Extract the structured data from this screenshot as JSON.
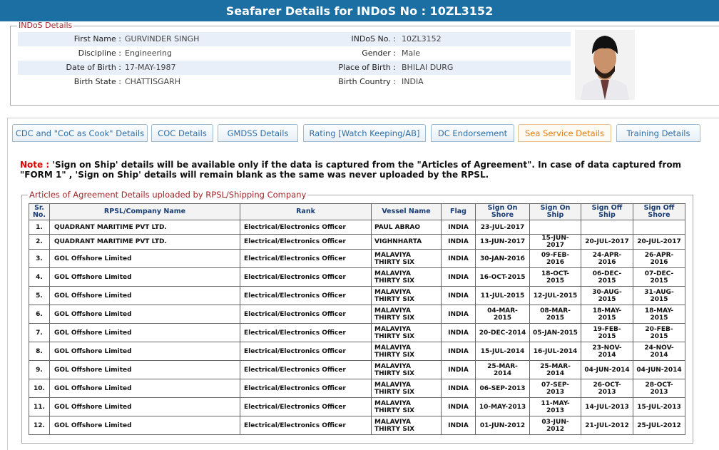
{
  "header": {
    "title": "Seafarer Details for INDoS No : 10ZL3152"
  },
  "indos_details": {
    "legend": "INDoS Details",
    "rows": [
      [
        {
          "label": "First Name :",
          "value": "GURVINDER SINGH"
        },
        {
          "label": "INDoS No. :",
          "value": "10ZL3152"
        }
      ],
      [
        {
          "label": "Discipline :",
          "value": "Engineering"
        },
        {
          "label": "Gender :",
          "value": "Male"
        }
      ],
      [
        {
          "label": "Date of Birth :",
          "value": "17-MAY-1987"
        },
        {
          "label": "Place of Birth :",
          "value": "BHILAI DURG"
        }
      ],
      [
        {
          "label": "Birth State :",
          "value": "CHATTISGARH"
        },
        {
          "label": "Birth Country :",
          "value": "INDIA"
        }
      ]
    ]
  },
  "tabs": {
    "items": [
      "CDC and \"CoC as Cook\" Details",
      "COC Details",
      "GMDSS Details",
      "Rating [Watch Keeping/AB]",
      "DC Endorsement",
      "Sea Service Details",
      "Training Details"
    ],
    "active": 5
  },
  "note": {
    "label": "Note :",
    "text": "'Sign on Ship' details will be available only if the data is captured from the \"Articles of Agreement\". In case of data captured from \"FORM 1\" , 'Sign on Ship' details will remain blank as the same was never uploaded by the RPSL."
  },
  "articles": {
    "legend": "Articles of Agreement Details uploaded by RPSL/Shipping Company",
    "columns": [
      "Sr. No.",
      "RPSL/Company Name",
      "Rank",
      "Vessel Name",
      "Flag",
      "Sign On Shore",
      "Sign On Ship",
      "Sign Off Ship",
      "Sign Off Shore"
    ],
    "rows": [
      [
        "1.",
        "QUADRANT MARITIME PVT LTD.",
        "Electrical/Electronics Officer",
        "PAUL ABRAO",
        "INDIA",
        "23-JUL-2017",
        null,
        null,
        null
      ],
      [
        "2.",
        "QUADRANT MARITIME PVT LTD.",
        "Electrical/Electronics Officer",
        "VIGHNHARTA",
        "INDIA",
        "13-JUN-2017",
        "15-JUN-2017",
        "20-JUL-2017",
        "20-JUL-2017"
      ],
      [
        "3.",
        "GOL Offshore Limited",
        "Electrical/Electronics Officer",
        "MALAVIYA THIRTY SIX",
        "INDIA",
        "30-JAN-2016",
        "09-FEB-2016",
        "24-APR-2016",
        "26-APR-2016"
      ],
      [
        "4.",
        "GOL Offshore Limited",
        "Electrical/Electronics Officer",
        "MALAVIYA THIRTY SIX",
        "INDIA",
        "16-OCT-2015",
        "18-OCT-2015",
        "06-DEC-2015",
        "07-DEC-2015"
      ],
      [
        "5.",
        "GOL Offshore Limited",
        "Electrical/Electronics Officer",
        "MALAVIYA THIRTY SIX",
        "INDIA",
        "11-JUL-2015",
        "12-JUL-2015",
        "30-AUG-2015",
        "31-AUG-2015"
      ],
      [
        "6.",
        "GOL Offshore Limited",
        "Electrical/Electronics Officer",
        "MALAVIYA THIRTY SIX",
        "INDIA",
        "04-MAR-2015",
        "08-MAR-2015",
        "18-MAY-2015",
        "18-MAY-2015"
      ],
      [
        "7.",
        "GOL Offshore Limited",
        "Electrical/Electronics Officer",
        "MALAVIYA THIRTY SIX",
        "INDIA",
        "20-DEC-2014",
        "05-JAN-2015",
        "19-FEB-2015",
        "20-FEB-2015"
      ],
      [
        "8.",
        "GOL Offshore Limited",
        "Electrical/Electronics Officer",
        "MALAVIYA THIRTY SIX",
        "INDIA",
        "15-JUL-2014",
        "16-JUL-2014",
        "23-NOV-2014",
        "24-NOV-2014"
      ],
      [
        "9.",
        "GOL Offshore Limited",
        "Electrical/Electronics Officer",
        "MALAVIYA THIRTY SIX",
        "INDIA",
        "25-MAR-2014",
        "25-MAR-2014",
        "04-JUN-2014",
        "04-JUN-2014"
      ],
      [
        "10.",
        "GOL Offshore Limited",
        "Electrical/Electronics Officer",
        "MALAVIYA THIRTY SIX",
        "INDIA",
        "06-SEP-2013",
        "07-SEP-2013",
        "26-OCT-2013",
        "28-OCT-2013"
      ],
      [
        "11.",
        "GOL Offshore Limited",
        "Electrical/Electronics Officer",
        "MALAVIYA THIRTY SIX",
        "INDIA",
        "10-MAY-2013",
        "11-MAY-2013",
        "14-JUL-2013",
        "15-JUL-2013"
      ],
      [
        "12.",
        "GOL Offshore Limited",
        "Electrical/Electronics Officer",
        "MALAVIYA THIRTY SIX",
        "INDIA",
        "01-JUN-2012",
        "03-JUN-2012",
        "21-JUL-2012",
        "25-JUL-2012"
      ]
    ]
  }
}
